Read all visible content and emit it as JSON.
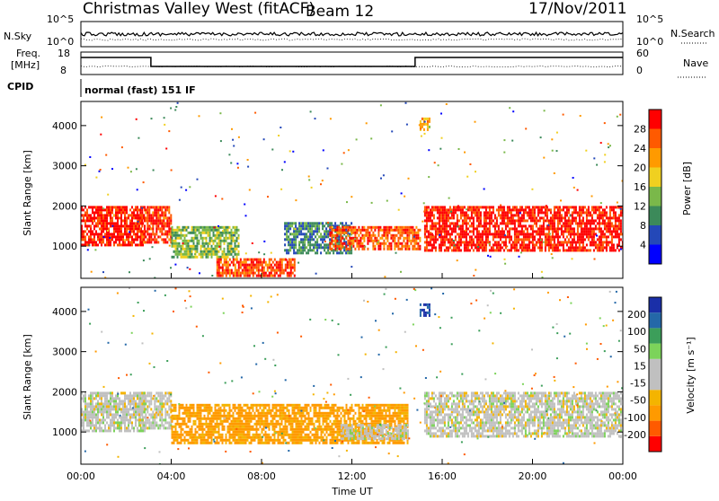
{
  "header": {
    "radar_title": "Christmas Valley West (fitACF)",
    "beam": "Beam 12",
    "date": "17/Nov/2011"
  },
  "top_panels": {
    "nsky_label": "N.Sky",
    "nsky_ticks": [
      "10^5",
      "10^0"
    ],
    "nsearch_label": "N.Search",
    "nsearch_ticks": [
      "10^5",
      "10^0"
    ],
    "freq_label_line1": "Freq.",
    "freq_label_line2": "[MHz]",
    "freq_ticks": [
      "18",
      "8"
    ],
    "nave_label": "Nave",
    "nave_ticks": [
      "60",
      "0"
    ],
    "cpid_label": "CPID",
    "cpid_text": "normal (fast) 151 IF"
  },
  "colors": {
    "power_scale": [
      "#0000ff",
      "#2448b8",
      "#3c8a5a",
      "#7ab84a",
      "#f0d020",
      "#ff9a00",
      "#ff5a00",
      "#ff0000"
    ],
    "velocity_scale": [
      "#ff0000",
      "#ff5a00",
      "#ff9a00",
      "#f4b400",
      "#c0c0c0",
      "#c0c0c0",
      "#7cd35a",
      "#3c9e5a",
      "#2468a8",
      "#1a2fa8"
    ]
  },
  "chart_data": [
    {
      "type": "heatmap",
      "panel": "power",
      "ylabel": "Slant Range [km]",
      "yticks": [
        "1000",
        "2000",
        "3000",
        "4000"
      ],
      "ylim": [
        200,
        4600
      ],
      "xlim": [
        "00:00",
        "24:00"
      ],
      "colorbar_label": "Power [dB]",
      "colorbar_ticks": [
        "4",
        "8",
        "12",
        "16",
        "20",
        "24",
        "28"
      ],
      "colorbar_range": [
        0,
        32
      ],
      "regions": [
        {
          "t": [
            0.0,
            2.8
          ],
          "r": [
            1000,
            2000
          ],
          "level": 30
        },
        {
          "t": [
            2.6,
            4.0
          ],
          "r": [
            1100,
            2000
          ],
          "level": 28
        },
        {
          "t": [
            4.0,
            7.0
          ],
          "r": [
            700,
            1500
          ],
          "level": 14
        },
        {
          "t": [
            6.0,
            9.5
          ],
          "r": [
            250,
            700
          ],
          "level": 27
        },
        {
          "t": [
            9.0,
            12.0
          ],
          "r": [
            800,
            1600
          ],
          "level": 9
        },
        {
          "t": [
            11.0,
            15.0
          ],
          "r": [
            900,
            1500
          ],
          "level": 26
        },
        {
          "t": [
            15.2,
            24.0
          ],
          "r": [
            900,
            2000
          ],
          "level": 30
        },
        {
          "t": [
            15.0,
            15.4
          ],
          "r": [
            3900,
            4200
          ],
          "level": 20
        }
      ]
    },
    {
      "type": "heatmap",
      "panel": "velocity",
      "ylabel": "Slant Range [km]",
      "yticks": [
        "1000",
        "2000",
        "3000",
        "4000"
      ],
      "ylim": [
        200,
        4600
      ],
      "xlim": [
        "00:00",
        "24:00"
      ],
      "xlabel": "Time UT",
      "xticks": [
        "00:00",
        "04:00",
        "08:00",
        "12:00",
        "16:00",
        "20:00",
        "00:00"
      ],
      "colorbar_label": "Velocity [m s⁻¹]",
      "colorbar_ticks": [
        "-200",
        "-100",
        "-50",
        "-15",
        "15",
        "50",
        "100",
        "200"
      ],
      "regions": [
        {
          "t": [
            0.0,
            2.8
          ],
          "r": [
            1000,
            2000
          ],
          "v": 0
        },
        {
          "t": [
            2.6,
            4.0
          ],
          "r": [
            1100,
            2000
          ],
          "v": 0
        },
        {
          "t": [
            4.0,
            14.5
          ],
          "r": [
            700,
            1700
          ],
          "v": -60
        },
        {
          "t": [
            11.5,
            14.5
          ],
          "r": [
            800,
            1200
          ],
          "v": 0
        },
        {
          "t": [
            15.2,
            24.0
          ],
          "r": [
            900,
            2000
          ],
          "v": 0
        },
        {
          "t": [
            15.0,
            15.4
          ],
          "r": [
            3900,
            4200
          ],
          "v": 200
        }
      ]
    }
  ]
}
